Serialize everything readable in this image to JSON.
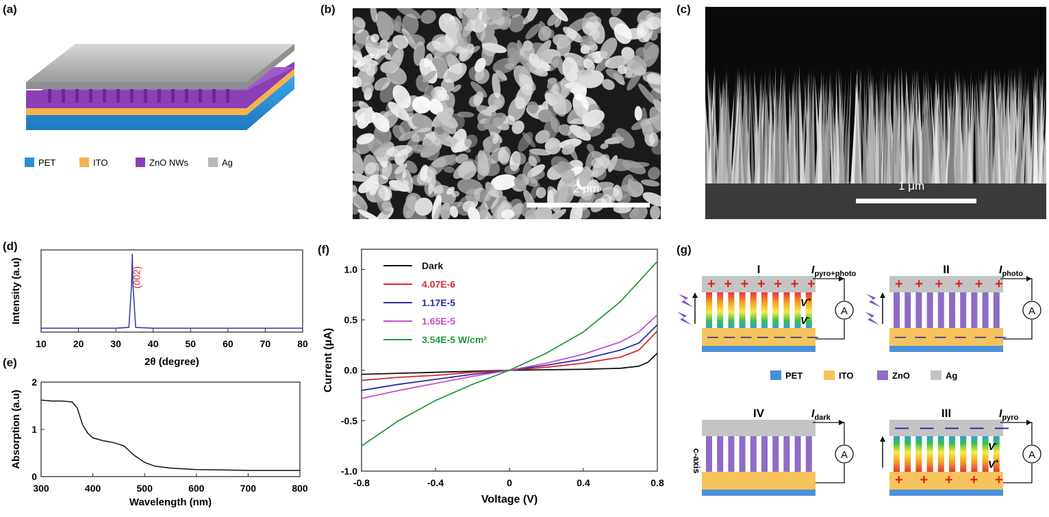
{
  "labels": {
    "a": "(a)",
    "b": "(b)",
    "c": "(c)",
    "d": "(d)",
    "e": "(e)",
    "f": "(f)",
    "g": "(g)"
  },
  "panel_a": {
    "legend": [
      {
        "name": "PET",
        "color": "#2b8fd6"
      },
      {
        "name": "ITO",
        "color": "#f5b34a"
      },
      {
        "name": "ZnO NWs",
        "color": "#8a3fb5"
      },
      {
        "name": "Ag",
        "color": "#b8b8b8"
      }
    ]
  },
  "panel_b": {
    "scalebar": "2 μm"
  },
  "panel_c": {
    "scalebar": "1 μm"
  },
  "chart_data": [
    {
      "id": "d",
      "type": "line",
      "xlabel": "2θ (degree)",
      "ylabel": "Intensity (a.u)",
      "xlim": [
        10,
        80
      ],
      "xticks": [
        10,
        20,
        30,
        40,
        50,
        60,
        70,
        80
      ],
      "annotation": "(002)",
      "series": [
        {
          "color": "#3d3db5",
          "x": [
            10,
            20,
            30,
            33.5,
            34.2,
            34.4,
            34.6,
            35.3,
            40,
            50,
            60,
            72,
            73,
            80
          ],
          "y": [
            0.05,
            0.05,
            0.05,
            0.06,
            0.6,
            1.0,
            0.6,
            0.06,
            0.05,
            0.05,
            0.05,
            0.05,
            0.05,
            0.05
          ]
        }
      ]
    },
    {
      "id": "e",
      "type": "line",
      "xlabel": "Wavelength (nm)",
      "ylabel": "Absorption (a.u)",
      "xlim": [
        300,
        800
      ],
      "ylim": [
        0,
        2
      ],
      "xticks": [
        300,
        400,
        500,
        600,
        700,
        800
      ],
      "yticks": [
        0,
        1,
        2
      ],
      "series": [
        {
          "color": "#111111",
          "x": [
            300,
            320,
            340,
            360,
            370,
            380,
            390,
            400,
            420,
            440,
            460,
            480,
            500,
            520,
            550,
            600,
            650,
            700,
            750,
            800
          ],
          "y": [
            1.62,
            1.6,
            1.6,
            1.58,
            1.45,
            1.1,
            0.92,
            0.82,
            0.76,
            0.72,
            0.65,
            0.45,
            0.3,
            0.22,
            0.18,
            0.15,
            0.14,
            0.13,
            0.13,
            0.13
          ]
        }
      ]
    },
    {
      "id": "f",
      "type": "line",
      "xlabel": "Voltage (V)",
      "ylabel": "Current (μA)",
      "xlim": [
        -0.8,
        0.8
      ],
      "ylim": [
        -1.0,
        1.2
      ],
      "xticks": [
        -0.8,
        -0.4,
        0,
        0.4,
        0.8
      ],
      "xticklabels": [
        "-0.8",
        "-0.4",
        "0",
        "0.4",
        "0.8"
      ],
      "yticks": [
        -1.0,
        -0.5,
        0.0,
        0.5,
        1.0
      ],
      "yticklabels": [
        "-1.0",
        "-0.5",
        "0.0",
        "0.5",
        "1.0"
      ],
      "series": [
        {
          "name": "Dark",
          "color": "#111111",
          "x": [
            -0.8,
            -0.6,
            -0.4,
            -0.2,
            0,
            0.2,
            0.4,
            0.6,
            0.7,
            0.75,
            0.8
          ],
          "y": [
            -0.04,
            -0.03,
            -0.02,
            -0.01,
            0,
            0.005,
            0.01,
            0.02,
            0.04,
            0.08,
            0.17
          ]
        },
        {
          "name": "4.07E-6",
          "color": "#d62a2a",
          "x": [
            -0.8,
            -0.6,
            -0.4,
            -0.2,
            0,
            0.2,
            0.4,
            0.6,
            0.7,
            0.8
          ],
          "y": [
            -0.1,
            -0.07,
            -0.05,
            -0.02,
            0,
            0.03,
            0.07,
            0.13,
            0.2,
            0.39
          ]
        },
        {
          "name": "1.17E-5",
          "color": "#2a2aa8",
          "x": [
            -0.8,
            -0.6,
            -0.4,
            -0.2,
            0,
            0.2,
            0.4,
            0.6,
            0.7,
            0.8
          ],
          "y": [
            -0.2,
            -0.14,
            -0.09,
            -0.04,
            0,
            0.05,
            0.11,
            0.2,
            0.27,
            0.45
          ]
        },
        {
          "name": "1.65E-5",
          "color": "#c74fc7",
          "x": [
            -0.8,
            -0.6,
            -0.4,
            -0.2,
            0,
            0.2,
            0.4,
            0.6,
            0.7,
            0.8
          ],
          "y": [
            -0.28,
            -0.2,
            -0.13,
            -0.06,
            0,
            0.07,
            0.16,
            0.28,
            0.38,
            0.55
          ]
        },
        {
          "name": "3.54E-5 W/cm²",
          "color": "#1f9a3a",
          "x": [
            -0.8,
            -0.6,
            -0.4,
            -0.2,
            0,
            0.2,
            0.4,
            0.6,
            0.8
          ],
          "y": [
            -0.75,
            -0.5,
            -0.3,
            -0.14,
            0,
            0.17,
            0.38,
            0.68,
            1.08
          ]
        }
      ]
    }
  ],
  "panel_g": {
    "states": [
      {
        "roman": "I",
        "current_main": "I",
        "current_sub": "pyro+photo",
        "v_top": "V",
        "v_top_sup": "+",
        "v_bot": "V",
        "v_bot_sup": "-"
      },
      {
        "roman": "II",
        "current_main": "I",
        "current_sub": "photo"
      },
      {
        "roman": "IV",
        "current_main": "I",
        "current_sub": "dark",
        "axis": "c-axis"
      },
      {
        "roman": "III",
        "current_main": "I",
        "current_sub": "pyro",
        "v_top": "V",
        "v_top_sup": "-",
        "v_bot": "V",
        "v_bot_sup": "+"
      }
    ],
    "ammeter": "A",
    "plus": "+",
    "minus": "—",
    "legend": [
      {
        "name": "PET",
        "color": "#4a90d9"
      },
      {
        "name": "ITO",
        "color": "#f7c35c"
      },
      {
        "name": "ZnO",
        "color": "#8e6cc6"
      },
      {
        "name": "Ag",
        "color": "#c4c4c4"
      }
    ]
  }
}
